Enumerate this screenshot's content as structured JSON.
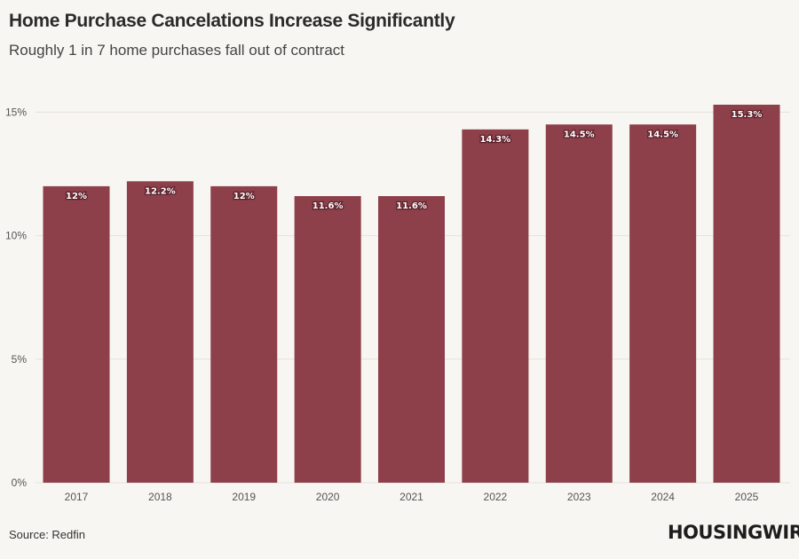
{
  "chart_data": {
    "type": "bar",
    "title": "Home Purchase Cancelations Increase Significantly",
    "subtitle": "Roughly 1 in 7 home purchases fall out of contract",
    "categories": [
      "2017",
      "2018",
      "2019",
      "2020",
      "2021",
      "2022",
      "2023",
      "2024",
      "2025"
    ],
    "values": [
      12,
      12.2,
      12,
      11.6,
      11.6,
      14.3,
      14.5,
      14.5,
      15.3
    ],
    "data_labels": [
      "12%",
      "12.2%",
      "12%",
      "11.6%",
      "11.6%",
      "14.3%",
      "14.5%",
      "14.5%",
      "15.3%"
    ],
    "ylim": [
      0,
      15.3
    ],
    "yticks": [
      0,
      5,
      10,
      15
    ],
    "ytick_labels": [
      "0%",
      "5%",
      "10%",
      "15%"
    ],
    "xlabel": "",
    "ylabel": "",
    "bar_color": "#8d3f4a",
    "grid": true
  },
  "source": "Source: Redfin",
  "brand": "HOUSINGWIRE"
}
